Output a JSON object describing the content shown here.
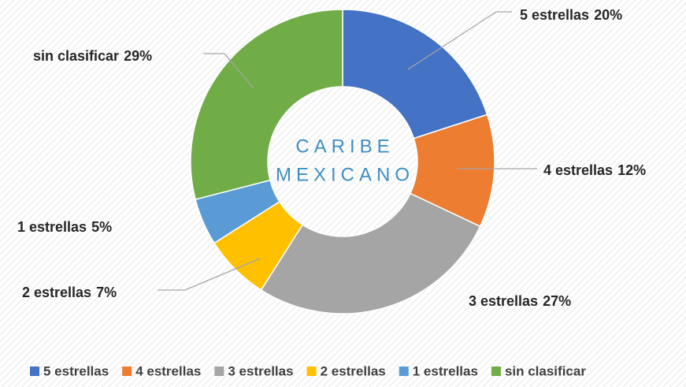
{
  "chart_data": {
    "type": "donut",
    "categories": [
      "5 estrellas",
      "4 estrellas",
      "3 estrellas",
      "2 estrellas",
      "1 estrellas",
      "sin clasificar"
    ],
    "values": [
      20,
      12,
      27,
      7,
      5,
      29
    ],
    "value_labels": [
      "20%",
      "12%",
      "27%",
      "7%",
      "5%",
      "29%"
    ],
    "colors": [
      "#4472c4",
      "#ed7d31",
      "#a5a5a5",
      "#ffc000",
      "#5b9bd5",
      "#70ad47"
    ],
    "center_text": [
      "CARIBE",
      "MEXICANO"
    ],
    "legend": "bottom"
  }
}
